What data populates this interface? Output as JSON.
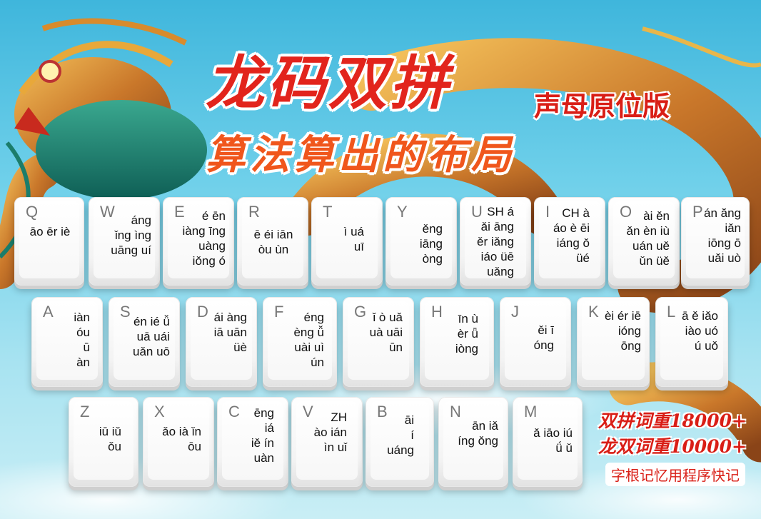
{
  "title": "龙码双拼",
  "subtitle_right": "声母原位版",
  "subtitle": "算法算出的布局",
  "keyboard": {
    "row1": [
      {
        "letter": "Q",
        "sounds": "āo ēr iè"
      },
      {
        "letter": "W",
        "sounds": "áng\nǐng ìng\nuāng uí"
      },
      {
        "letter": "E",
        "sounds": "é ēn\niàng īng\nuàng\niǒng ó"
      },
      {
        "letter": "R",
        "sounds": "ē éi iān\nòu ùn"
      },
      {
        "letter": "T",
        "sounds": "ì uá\nuī"
      },
      {
        "letter": "Y",
        "sounds": "ěng\niāng\nòng"
      },
      {
        "letter": "U",
        "sounds": "SH á\nǎi āng\něr iǎng\niáo üē\nuǎng"
      },
      {
        "letter": "I",
        "sounds": "CH à\náo è ēi\niáng ǒ\nüé"
      },
      {
        "letter": "O",
        "sounds": "ài ěn\nǎn èn iù\nuán uě\nǔn üě"
      },
      {
        "letter": "P",
        "sounds": "án ăng\niǎn\niōng ō\nuǎi uò"
      }
    ],
    "row2": [
      {
        "letter": "A",
        "sounds": "iàn\nóu\nū\nàn"
      },
      {
        "letter": "S",
        "sounds": "én ié ǚ\nuā uái\nuǎn uō"
      },
      {
        "letter": "D",
        "sounds": "ái àng\niā uān\nüè"
      },
      {
        "letter": "F",
        "sounds": "éng\nèng ǚ\nuài uì\nún"
      },
      {
        "letter": "G",
        "sounds": "ǐ ò uǎ\nuà uāi\nūn"
      },
      {
        "letter": "H",
        "sounds": "īn ù\nèr ǖ\niòng"
      },
      {
        "letter": "J",
        "sounds": "ěi ī\nóng"
      },
      {
        "letter": "K",
        "sounds": "èi ér iē\nióng\nōng"
      },
      {
        "letter": "L",
        "sounds": "ā ě iǎo\niào uó\nú uǒ"
      }
    ],
    "row3": [
      {
        "letter": "Z",
        "sounds": "iū iǔ\nǒu"
      },
      {
        "letter": "X",
        "sounds": "ǎo ià ǐn\nōu"
      },
      {
        "letter": "C",
        "sounds": "ēng\niá\niě ín\nuàn"
      },
      {
        "letter": "V",
        "sounds": "ZH\nào ián\nìn uǐ"
      },
      {
        "letter": "B",
        "sounds": "āi\ní\nuáng"
      },
      {
        "letter": "N",
        "sounds": "ān iǎ\níng ǒng"
      },
      {
        "letter": "M",
        "sounds": "ǎ iāo iú\nǘ ǔ"
      }
    ]
  },
  "stats": {
    "line1": "双拼词重18000+",
    "line2": "龙双词重10000+",
    "note": "字根记忆用程序快记"
  },
  "colors": {
    "title": "#e2241c",
    "subtitle": "#f0561c",
    "sky": "#3fb6dc"
  }
}
